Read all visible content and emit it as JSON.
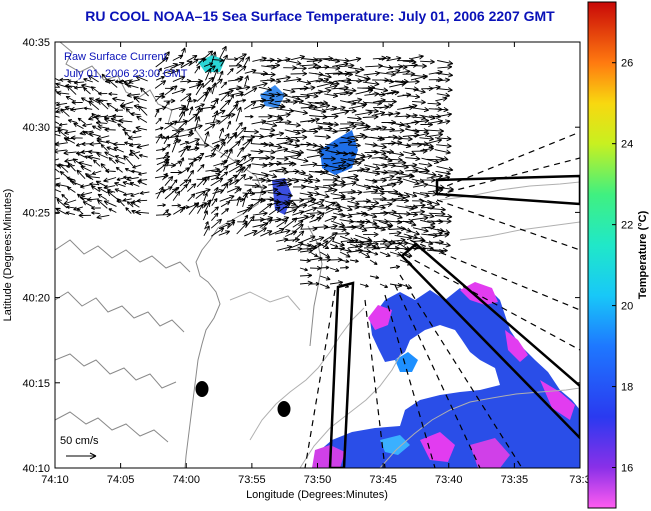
{
  "title": "RU COOL  NOAA–15  Sea Surface Temperature:  July 01, 2006 2207 GMT",
  "legend": {
    "line1": "Raw Surface Current",
    "line2": "July 01, 2006 23:00 GMT"
  },
  "scale_label": "50 cm/s",
  "axes": {
    "xlabel": "Longitude (Degrees:Minutes)",
    "ylabel": "Latitude (Degrees:Minutes)",
    "x_ticks": [
      "74:10",
      "74:05",
      "74:00",
      "73:55",
      "73:50",
      "73:45",
      "73:40",
      "73:35",
      "73:3"
    ],
    "y_ticks": [
      "40:35",
      "40:30",
      "40:25",
      "40:20",
      "40:15",
      "40:10"
    ]
  },
  "colorbar": {
    "title": "Temperature (°C)",
    "ticks": [
      26,
      24,
      22,
      20,
      18,
      16
    ],
    "range": [
      15,
      27.5
    ]
  },
  "colors": {
    "title": "#0a12b8",
    "coast": "#808080",
    "vectors": "#000000"
  }
}
